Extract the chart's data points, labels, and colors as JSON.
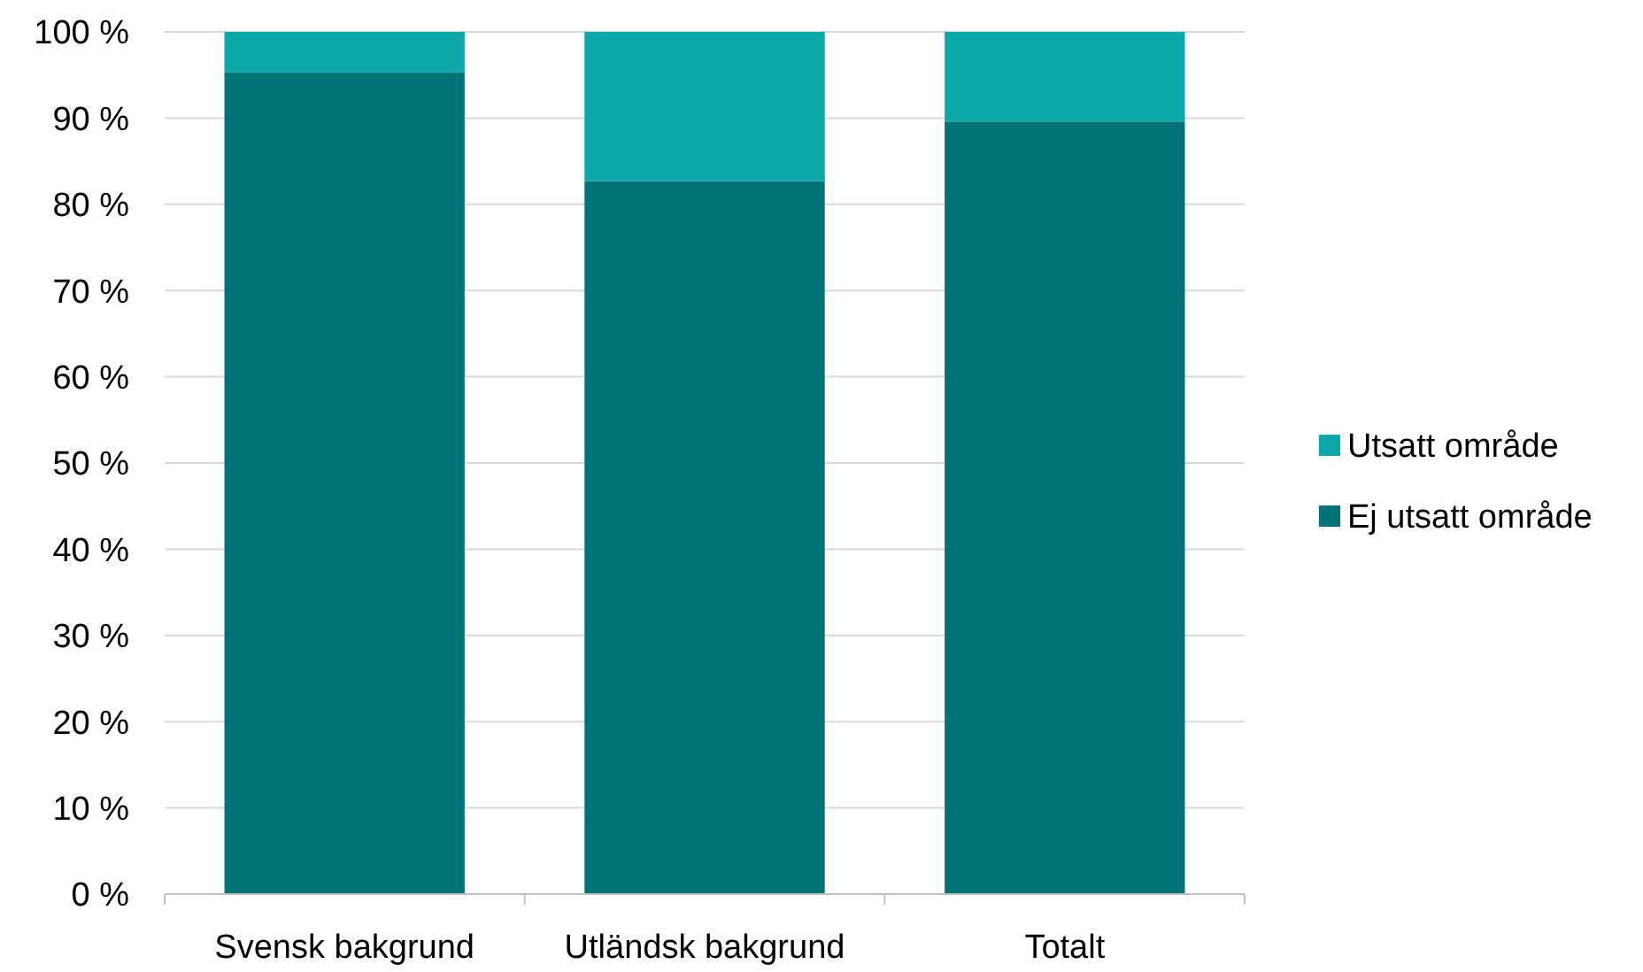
{
  "chart_data": {
    "type": "bar",
    "stacked": true,
    "categories": [
      "Svensk bakgrund",
      "Utländsk bakgrund",
      "Totalt"
    ],
    "series": [
      {
        "name": "Ej utsatt område",
        "color": "#007377",
        "values": [
          95.3,
          82.7,
          89.6
        ]
      },
      {
        "name": "Utsatt område",
        "color": "#0aa8a8",
        "values": [
          4.7,
          17.3,
          10.4
        ]
      }
    ],
    "ylim": [
      0,
      100
    ],
    "yticks": [
      {
        "value": 0,
        "label": "0 %"
      },
      {
        "value": 10,
        "label": "10 %"
      },
      {
        "value": 20,
        "label": "20 %"
      },
      {
        "value": 30,
        "label": "30 %"
      },
      {
        "value": 40,
        "label": "40 %"
      },
      {
        "value": 50,
        "label": "50 %"
      },
      {
        "value": 60,
        "label": "60 %"
      },
      {
        "value": 70,
        "label": "70 %"
      },
      {
        "value": 80,
        "label": "80 %"
      },
      {
        "value": 90,
        "label": "90 %"
      },
      {
        "value": 100,
        "label": "100 %"
      }
    ],
    "grid": "y",
    "legend": "right"
  }
}
